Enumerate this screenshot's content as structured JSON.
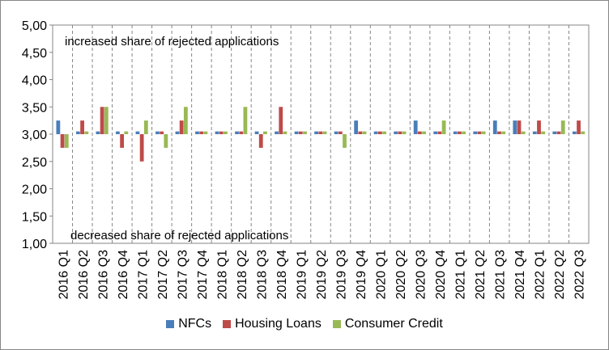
{
  "chart_data": {
    "type": "bar",
    "categories": [
      "2016 Q1",
      "2016 Q2",
      "2016 Q3",
      "2016 Q4",
      "2017 Q1",
      "2017 Q2",
      "2017 Q3",
      "2017 Q4",
      "2018 Q1",
      "2018 Q2",
      "2018 Q3",
      "2018 Q4",
      "2019 Q1",
      "2019 Q2",
      "2019 Q3",
      "2019 Q4",
      "2020 Q1",
      "2020 Q2",
      "2020 Q3",
      "2020 Q4",
      "2021 Q1",
      "2021 Q2",
      "2021 Q3",
      "2021 Q4",
      "2022 Q1",
      "2022 Q2",
      "2022 Q3"
    ],
    "series": [
      {
        "name": "NFCs",
        "color": "#4a7ebb",
        "values": [
          3.25,
          3.05,
          3.05,
          3.05,
          3.05,
          3.05,
          3.05,
          3.05,
          3.05,
          3.05,
          3.05,
          3.05,
          3.05,
          3.05,
          3.05,
          3.25,
          3.05,
          3.05,
          3.25,
          3.05,
          3.05,
          3.05,
          3.25,
          3.25,
          3.05,
          3.05,
          3.05
        ]
      },
      {
        "name": "Housing Loans",
        "color": "#be4b48",
        "values": [
          2.75,
          3.25,
          3.5,
          2.75,
          2.5,
          3.05,
          3.25,
          3.05,
          3.05,
          3.05,
          2.75,
          3.5,
          3.05,
          3.05,
          3.05,
          3.05,
          3.05,
          3.05,
          3.05,
          3.05,
          3.05,
          3.05,
          3.05,
          3.25,
          3.25,
          3.05,
          3.25
        ]
      },
      {
        "name": "Consumer Credit",
        "color": "#98b954",
        "values": [
          2.75,
          3.05,
          3.5,
          3.05,
          3.25,
          2.75,
          3.5,
          3.05,
          3.05,
          3.5,
          3.05,
          3.05,
          3.05,
          3.05,
          2.75,
          3.05,
          3.05,
          3.05,
          3.05,
          3.25,
          3.05,
          3.05,
          3.05,
          3.05,
          3.05,
          3.25,
          3.05
        ]
      }
    ],
    "y_ticks": [
      "1,00",
      "1,50",
      "2,00",
      "2,50",
      "3,00",
      "3,50",
      "4,00",
      "4,50",
      "5,00"
    ],
    "ylim": [
      1,
      5
    ],
    "baseline": 3,
    "annotations": {
      "top": "increased  share of rejected applications",
      "bottom": "decreased share of rejected applications"
    },
    "legend_position": "bottom",
    "grid": "dashed vertical separators between categories"
  }
}
